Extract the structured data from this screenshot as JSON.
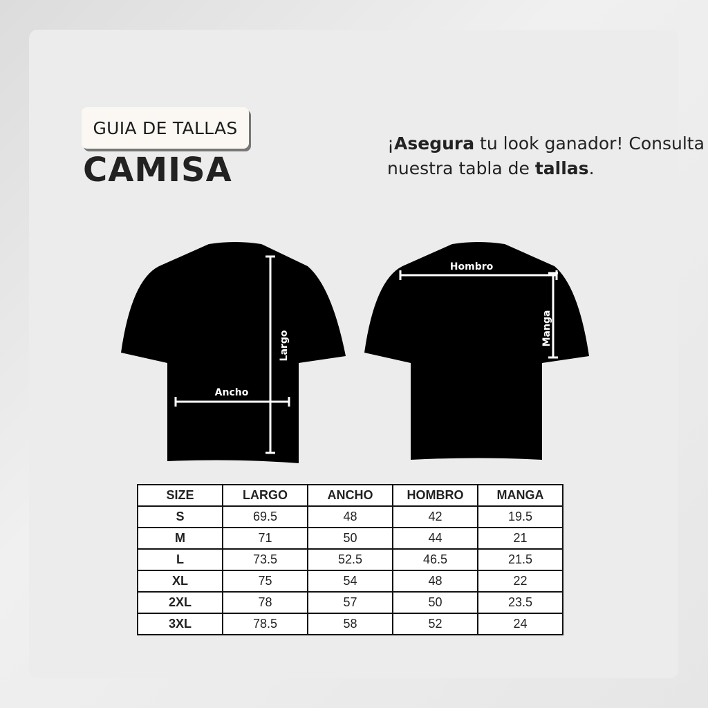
{
  "header": {
    "badge": "GUIA DE TALLAS",
    "title": "CAMISA",
    "tagline": {
      "bold1": "Asegura",
      "pre": "¡",
      "mid": " tu look ganador! Consulta nuestra tabla de ",
      "bold2": "tallas",
      "end": "."
    }
  },
  "diagram": {
    "front": {
      "largo": "Largo",
      "ancho": "Ancho"
    },
    "back": {
      "hombro": "Hombro",
      "manga": "Manga"
    }
  },
  "table": {
    "headers": [
      "SIZE",
      "LARGO",
      "ANCHO",
      "HOMBRO",
      "MANGA"
    ],
    "rows": [
      [
        "S",
        "69.5",
        "48",
        "42",
        "19.5"
      ],
      [
        "M",
        "71",
        "50",
        "44",
        "21"
      ],
      [
        "L",
        "73.5",
        "52.5",
        "46.5",
        "21.5"
      ],
      [
        "XL",
        "75",
        "54",
        "48",
        "22"
      ],
      [
        "2XL",
        "78",
        "57",
        "50",
        "23.5"
      ],
      [
        "3XL",
        "78.5",
        "58",
        "52",
        "24"
      ]
    ]
  }
}
